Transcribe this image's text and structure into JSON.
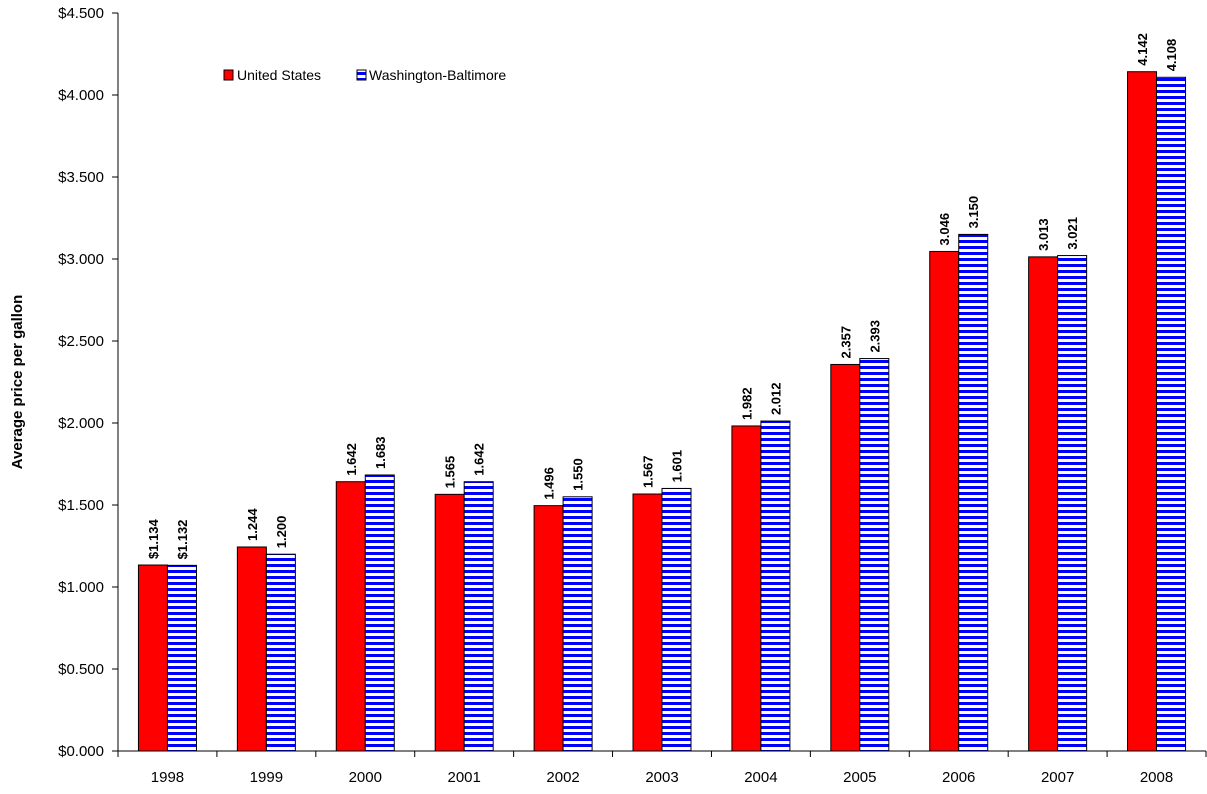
{
  "chart_data": {
    "type": "bar",
    "title": "",
    "xlabel": "",
    "ylabel": "Average price per gallon",
    "ylim": [
      0,
      4.5
    ],
    "y_ticks": [
      "$0.000",
      "$0.500",
      "$1.000",
      "$1.500",
      "$2.000",
      "$2.500",
      "$3.000",
      "$3.500",
      "$4.000",
      "$4.500"
    ],
    "y_tick_values": [
      0,
      0.5,
      1.0,
      1.5,
      2.0,
      2.5,
      3.0,
      3.5,
      4.0,
      4.5
    ],
    "grid": false,
    "legend_position": "top-left",
    "categories": [
      "1998",
      "1999",
      "2000",
      "2001",
      "2002",
      "2003",
      "2004",
      "2005",
      "2006",
      "2007",
      "2008"
    ],
    "series": [
      {
        "name": "United States",
        "color": "#ff0000",
        "pattern": "solid",
        "values": [
          1.134,
          1.244,
          1.642,
          1.565,
          1.496,
          1.567,
          1.982,
          2.357,
          3.046,
          3.013,
          4.142
        ],
        "data_labels": [
          "$1.134",
          "1.244",
          "1.642",
          "1.565",
          "1.496",
          "1.567",
          "1.982",
          "2.357",
          "3.046",
          "3.013",
          "4.142"
        ]
      },
      {
        "name": "Washington-Baltimore",
        "color": "#0000ff",
        "pattern": "horizontal-stripes",
        "values": [
          1.132,
          1.2,
          1.683,
          1.642,
          1.55,
          1.601,
          2.012,
          2.393,
          3.15,
          3.021,
          4.108
        ],
        "data_labels": [
          "$1.132",
          "1.200",
          "1.683",
          "1.642",
          "1.550",
          "1.601",
          "2.012",
          "2.393",
          "3.150",
          "3.021",
          "4.108"
        ]
      }
    ]
  }
}
